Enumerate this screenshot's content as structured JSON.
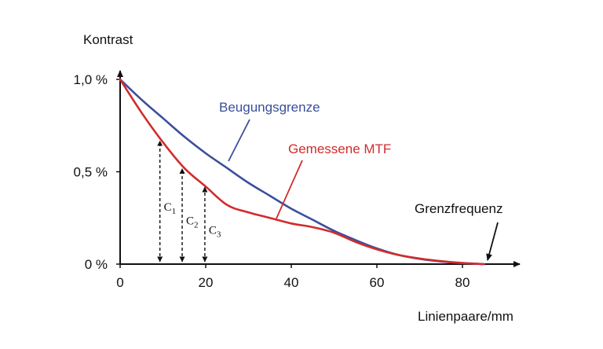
{
  "chart_data": {
    "type": "line",
    "ylabel": "Kontrast",
    "xlabel": "Linienpaare/mm",
    "xlim": [
      0,
      92
    ],
    "ylim": [
      0,
      1.15
    ],
    "x_ticks": [
      0,
      20,
      40,
      60,
      80
    ],
    "x_tick_labels": [
      "0",
      "20",
      "40",
      "60",
      "80"
    ],
    "y_ticks": [
      0,
      0.5,
      1.0
    ],
    "y_tick_labels": [
      "0 %",
      "0,5 %",
      "1,0 %"
    ],
    "grid": false,
    "series": [
      {
        "name": "Beugungsgrenze",
        "color": "#3a4f9c",
        "x": [
          0,
          5,
          10,
          15,
          20,
          25,
          30,
          35,
          40,
          45,
          50,
          55,
          60,
          65,
          70,
          75,
          80,
          85
        ],
        "y": [
          1.0,
          0.89,
          0.79,
          0.69,
          0.6,
          0.52,
          0.44,
          0.37,
          0.3,
          0.24,
          0.18,
          0.13,
          0.085,
          0.05,
          0.028,
          0.014,
          0.005,
          0.0
        ]
      },
      {
        "name": "Gemessene MTF",
        "color": "#d12c2c",
        "x": [
          0,
          5,
          10,
          15,
          20,
          25,
          30,
          35,
          40,
          45,
          50,
          55,
          60,
          65,
          70,
          75,
          80,
          85
        ],
        "y": [
          1.0,
          0.82,
          0.66,
          0.52,
          0.42,
          0.32,
          0.28,
          0.25,
          0.22,
          0.2,
          0.17,
          0.12,
          0.08,
          0.05,
          0.03,
          0.016,
          0.006,
          0.0
        ]
      }
    ],
    "contrast_markers": [
      {
        "label": "C",
        "sub": "1",
        "x": 9.3,
        "y": 0.68
      },
      {
        "label": "C",
        "sub": "2",
        "x": 14.5,
        "y": 0.53
      },
      {
        "label": "C",
        "sub": "3",
        "x": 19.8,
        "y": 0.43
      }
    ],
    "annotations": [
      {
        "text": "Grenzfrequenz",
        "point_x": 85,
        "point_y": 0.0
      }
    ]
  }
}
